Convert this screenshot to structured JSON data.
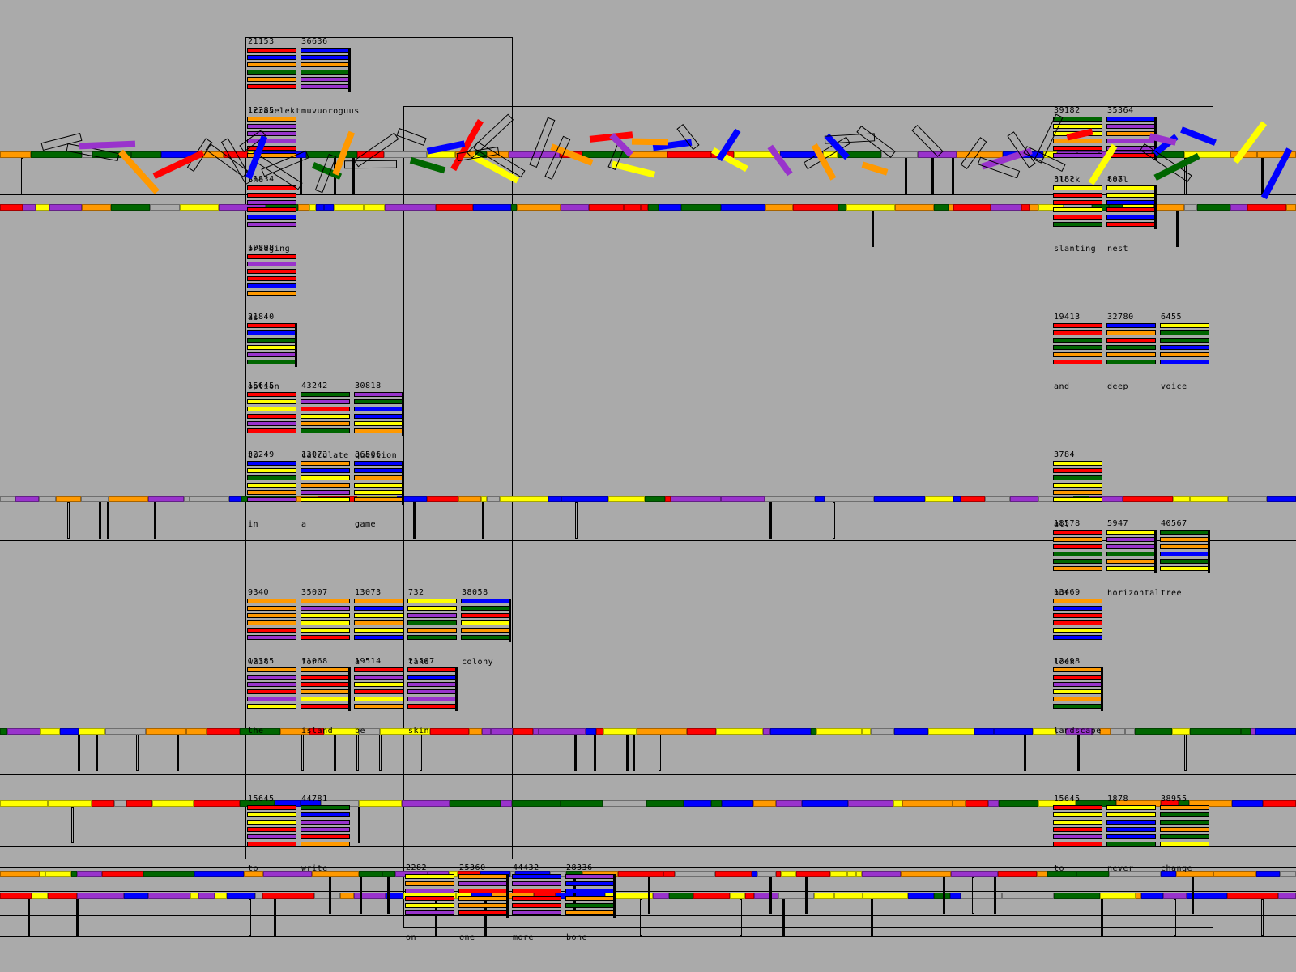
{
  "palette": {
    "red": "#ff0000",
    "blue": "#0000ff",
    "orange": "#ff9900",
    "yellow": "#ffff00",
    "purple": "#9933cc",
    "green": "#006600",
    "gray": "#aaaaaa",
    "black": "#000000",
    "background": "#aaaaaa"
  },
  "word_blocks": [
    {
      "num": "21153",
      "word": "irraselekt",
      "colors": [
        "red",
        "blue",
        "orange",
        "green",
        "orange",
        "red"
      ],
      "bar": false
    },
    {
      "num": "36636",
      "word": "muvuoroguus",
      "colors": [
        "blue",
        "blue",
        "orange",
        "green",
        "purple",
        "purple"
      ],
      "bar": true
    },
    {
      "num": "12385",
      "word": "the",
      "colors": [
        "orange",
        "purple",
        "purple",
        "purple",
        "red",
        "orange"
      ],
      "bar": false
    },
    {
      "num": "21834",
      "word": "bridging",
      "colors": [
        "red",
        "red",
        "purple",
        "red",
        "blue",
        "purple"
      ],
      "bar": false
    },
    {
      "num": "10898",
      "word": "as",
      "colors": [
        "red",
        "purple",
        "red",
        "red",
        "blue",
        "orange"
      ],
      "bar": false
    },
    {
      "num": "21840",
      "word": "option",
      "colors": [
        "red",
        "blue",
        "green",
        "yellow",
        "purple",
        "green"
      ],
      "bar": true
    },
    {
      "num": "15645",
      "word": "to",
      "colors": [
        "red",
        "yellow",
        "yellow",
        "red",
        "purple",
        "red"
      ],
      "bar": false
    },
    {
      "num": "43242",
      "word": "calculate",
      "colors": [
        "green",
        "purple",
        "red",
        "yellow",
        "orange",
        "green"
      ],
      "bar": false
    },
    {
      "num": "30818",
      "word": "question",
      "colors": [
        "purple",
        "green",
        "blue",
        "blue",
        "yellow",
        "orange"
      ],
      "bar": true
    },
    {
      "num": "32249",
      "word": "in",
      "colors": [
        "blue",
        "yellow",
        "green",
        "yellow",
        "orange",
        "purple"
      ],
      "bar": false
    },
    {
      "num": "13073",
      "word": "a",
      "colors": [
        "orange",
        "blue",
        "yellow",
        "orange",
        "purple",
        "yellow"
      ],
      "bar": false
    },
    {
      "num": "36506",
      "word": "game",
      "colors": [
        "blue",
        "blue",
        "orange",
        "yellow",
        "yellow",
        "orange"
      ],
      "bar": true
    },
    {
      "num": "9340",
      "word": "wait",
      "colors": [
        "orange",
        "orange",
        "orange",
        "orange",
        "red",
        "purple"
      ],
      "bar": false
    },
    {
      "num": "35007",
      "word": "for",
      "colors": [
        "orange",
        "purple",
        "yellow",
        "yellow",
        "yellow",
        "red"
      ],
      "bar": false
    },
    {
      "num": "13073",
      "word": "a",
      "colors": [
        "orange",
        "blue",
        "yellow",
        "orange",
        "yellow",
        "blue"
      ],
      "bar": false
    },
    {
      "num": "732",
      "word": "take",
      "colors": [
        "yellow",
        "yellow",
        "purple",
        "green",
        "orange",
        "green"
      ],
      "bar": false
    },
    {
      "num": "38058",
      "word": "colony",
      "colors": [
        "blue",
        "green",
        "red",
        "yellow",
        "orange",
        "green"
      ],
      "bar": true
    },
    {
      "num": "12385",
      "word": "the",
      "colors": [
        "orange",
        "purple",
        "purple",
        "red",
        "purple",
        "yellow"
      ],
      "bar": false
    },
    {
      "num": "11068",
      "word": "island",
      "colors": [
        "orange",
        "red",
        "red",
        "orange",
        "yellow",
        "red"
      ],
      "bar": true
    },
    {
      "num": "19514",
      "word": "be",
      "colors": [
        "red",
        "purple",
        "yellow",
        "red",
        "yellow",
        "orange"
      ],
      "bar": false
    },
    {
      "num": "21507",
      "word": "skin",
      "colors": [
        "red",
        "blue",
        "purple",
        "purple",
        "purple",
        "red"
      ],
      "bar": true
    },
    {
      "num": "15645",
      "word": "to",
      "colors": [
        "red",
        "yellow",
        "yellow",
        "red",
        "purple",
        "red"
      ],
      "bar": false
    },
    {
      "num": "44781",
      "word": "write",
      "colors": [
        "green",
        "blue",
        "purple",
        "purple",
        "red",
        "orange"
      ],
      "bar": false
    },
    {
      "num": "2282",
      "word": "on",
      "colors": [
        "yellow",
        "orange",
        "purple",
        "red",
        "yellow",
        "purple"
      ],
      "bar": false
    },
    {
      "num": "25360",
      "word": "one",
      "colors": [
        "orange",
        "purple",
        "red",
        "orange",
        "orange",
        "red"
      ],
      "bar": true
    },
    {
      "num": "44432",
      "word": "more",
      "colors": [
        "blue",
        "purple",
        "red",
        "red",
        "red",
        "purple"
      ],
      "bar": false
    },
    {
      "num": "28336",
      "word": "bone",
      "colors": [
        "purple",
        "blue",
        "blue",
        "orange",
        "green",
        "orange"
      ],
      "bar": true
    },
    {
      "num": "39182",
      "word": "clock",
      "colors": [
        "green",
        "yellow",
        "yellow",
        "orange",
        "red",
        "purple"
      ],
      "bar": false
    },
    {
      "num": "35364",
      "word": "tool",
      "colors": [
        "blue",
        "purple",
        "orange",
        "purple",
        "purple",
        "red"
      ],
      "bar": true
    },
    {
      "num": "3182",
      "word": "slanting",
      "colors": [
        "yellow",
        "red",
        "red",
        "yellow",
        "red",
        "green"
      ],
      "bar": false
    },
    {
      "num": "807",
      "word": "nest",
      "colors": [
        "yellow",
        "yellow",
        "blue",
        "red",
        "blue",
        "red"
      ],
      "bar": true
    },
    {
      "num": "19413",
      "word": "and",
      "colors": [
        "red",
        "red",
        "green",
        "green",
        "orange",
        "red"
      ],
      "bar": false
    },
    {
      "num": "32780",
      "word": "deep",
      "colors": [
        "blue",
        "orange",
        "red",
        "green",
        "orange",
        "green"
      ],
      "bar": false
    },
    {
      "num": "6455",
      "word": "voice",
      "colors": [
        "yellow",
        "green",
        "green",
        "blue",
        "orange",
        "blue"
      ],
      "bar": false
    },
    {
      "num": "3784",
      "word": "all",
      "colors": [
        "yellow",
        "red",
        "green",
        "yellow",
        "orange",
        "yellow"
      ],
      "bar": false
    },
    {
      "num": "18578",
      "word": "but",
      "colors": [
        "red",
        "orange",
        "red",
        "green",
        "green",
        "orange"
      ],
      "bar": false
    },
    {
      "num": "5947",
      "word": "horizontal",
      "colors": [
        "yellow",
        "purple",
        "purple",
        "green",
        "orange",
        "yellow"
      ],
      "bar": true
    },
    {
      "num": "40567",
      "word": "tree",
      "colors": [
        "green",
        "orange",
        "orange",
        "blue",
        "green",
        "yellow"
      ],
      "bar": true
    },
    {
      "num": "13469",
      "word": "lock",
      "colors": [
        "orange",
        "blue",
        "red",
        "red",
        "yellow",
        "blue"
      ],
      "bar": false
    },
    {
      "num": "12498",
      "word": "landscape",
      "colors": [
        "orange",
        "red",
        "purple",
        "yellow",
        "orange",
        "green"
      ],
      "bar": true
    },
    {
      "num": "15645",
      "word": "to",
      "colors": [
        "red",
        "yellow",
        "yellow",
        "red",
        "purple",
        "red"
      ],
      "bar": false
    },
    {
      "num": "1878",
      "word": "never",
      "colors": [
        "yellow",
        "yellow",
        "blue",
        "blue",
        "blue",
        "green"
      ],
      "bar": false
    },
    {
      "num": "38955",
      "word": "change",
      "colors": [
        "orange",
        "green",
        "green",
        "orange",
        "green",
        "yellow"
      ],
      "bar": false
    }
  ]
}
